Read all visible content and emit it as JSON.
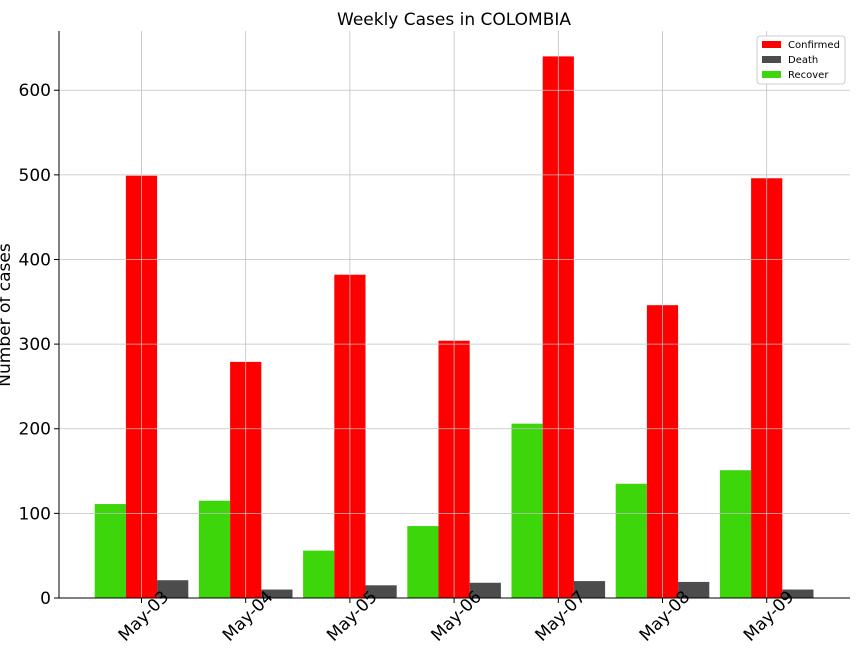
{
  "chart_data": {
    "type": "bar",
    "title": "Weekly Cases in COLOMBIA",
    "xlabel": "",
    "ylabel": "Number of cases",
    "categories": [
      "May-03",
      "May-04",
      "May-05",
      "May-06",
      "May-07",
      "May-08",
      "May-09"
    ],
    "series": [
      {
        "name": "Recover",
        "color": "#3cd60a",
        "values": [
          111,
          115,
          56,
          85,
          206,
          135,
          151
        ]
      },
      {
        "name": "Confirmed",
        "color": "#ff0000",
        "values": [
          499,
          279,
          382,
          304,
          640,
          346,
          496
        ]
      },
      {
        "name": "Death",
        "color": "#4c4c4c",
        "values": [
          21,
          10,
          15,
          18,
          20,
          19,
          10
        ]
      }
    ],
    "legend_order": [
      "Confirmed",
      "Death",
      "Recover"
    ],
    "legend_position": "top-right",
    "ylim": [
      0,
      670
    ],
    "yticks": [
      0,
      100,
      200,
      300,
      400,
      500,
      600
    ],
    "grid": true
  }
}
